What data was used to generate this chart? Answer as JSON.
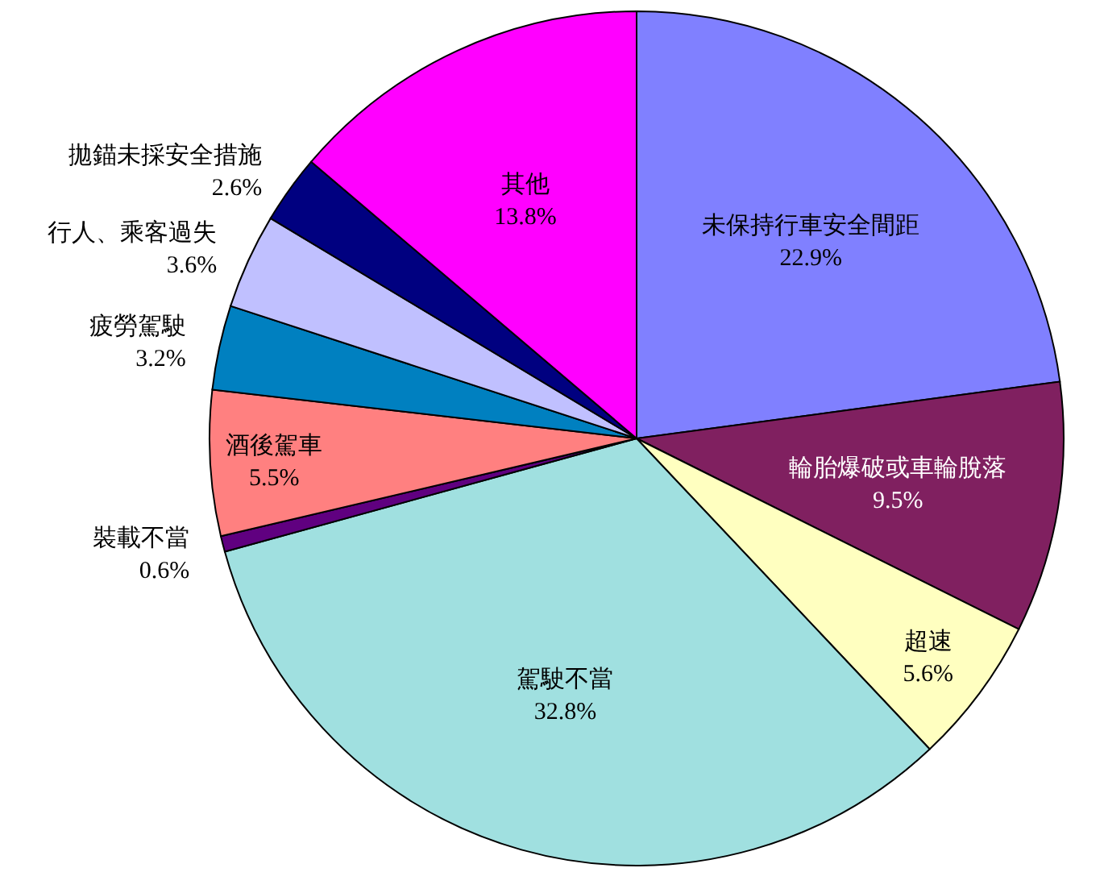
{
  "chart_data": {
    "type": "pie",
    "categories": [
      "未保持行車安全間距",
      "輪胎爆破或車輪脫落",
      "超速",
      "駕駛不當",
      "裝載不當",
      "酒後駕車",
      "疲勞駕駛",
      "行人、乘客過失",
      "拋錨未採安全措施",
      "其他"
    ],
    "values": [
      22.9,
      9.5,
      5.6,
      32.8,
      0.6,
      5.5,
      3.2,
      3.6,
      2.6,
      13.8
    ],
    "value_labels": [
      "22.9%",
      "9.5%",
      "5.6%",
      "32.8%",
      "0.6%",
      "5.5%",
      "3.2%",
      "3.6%",
      "2.6%",
      "13.8%"
    ],
    "colors": [
      "#8080ff",
      "#802060",
      "#ffffc0",
      "#a0e0e0",
      "#600080",
      "#ff8080",
      "#0080c0",
      "#c0c0ff",
      "#000080",
      "#ff00ff"
    ]
  }
}
